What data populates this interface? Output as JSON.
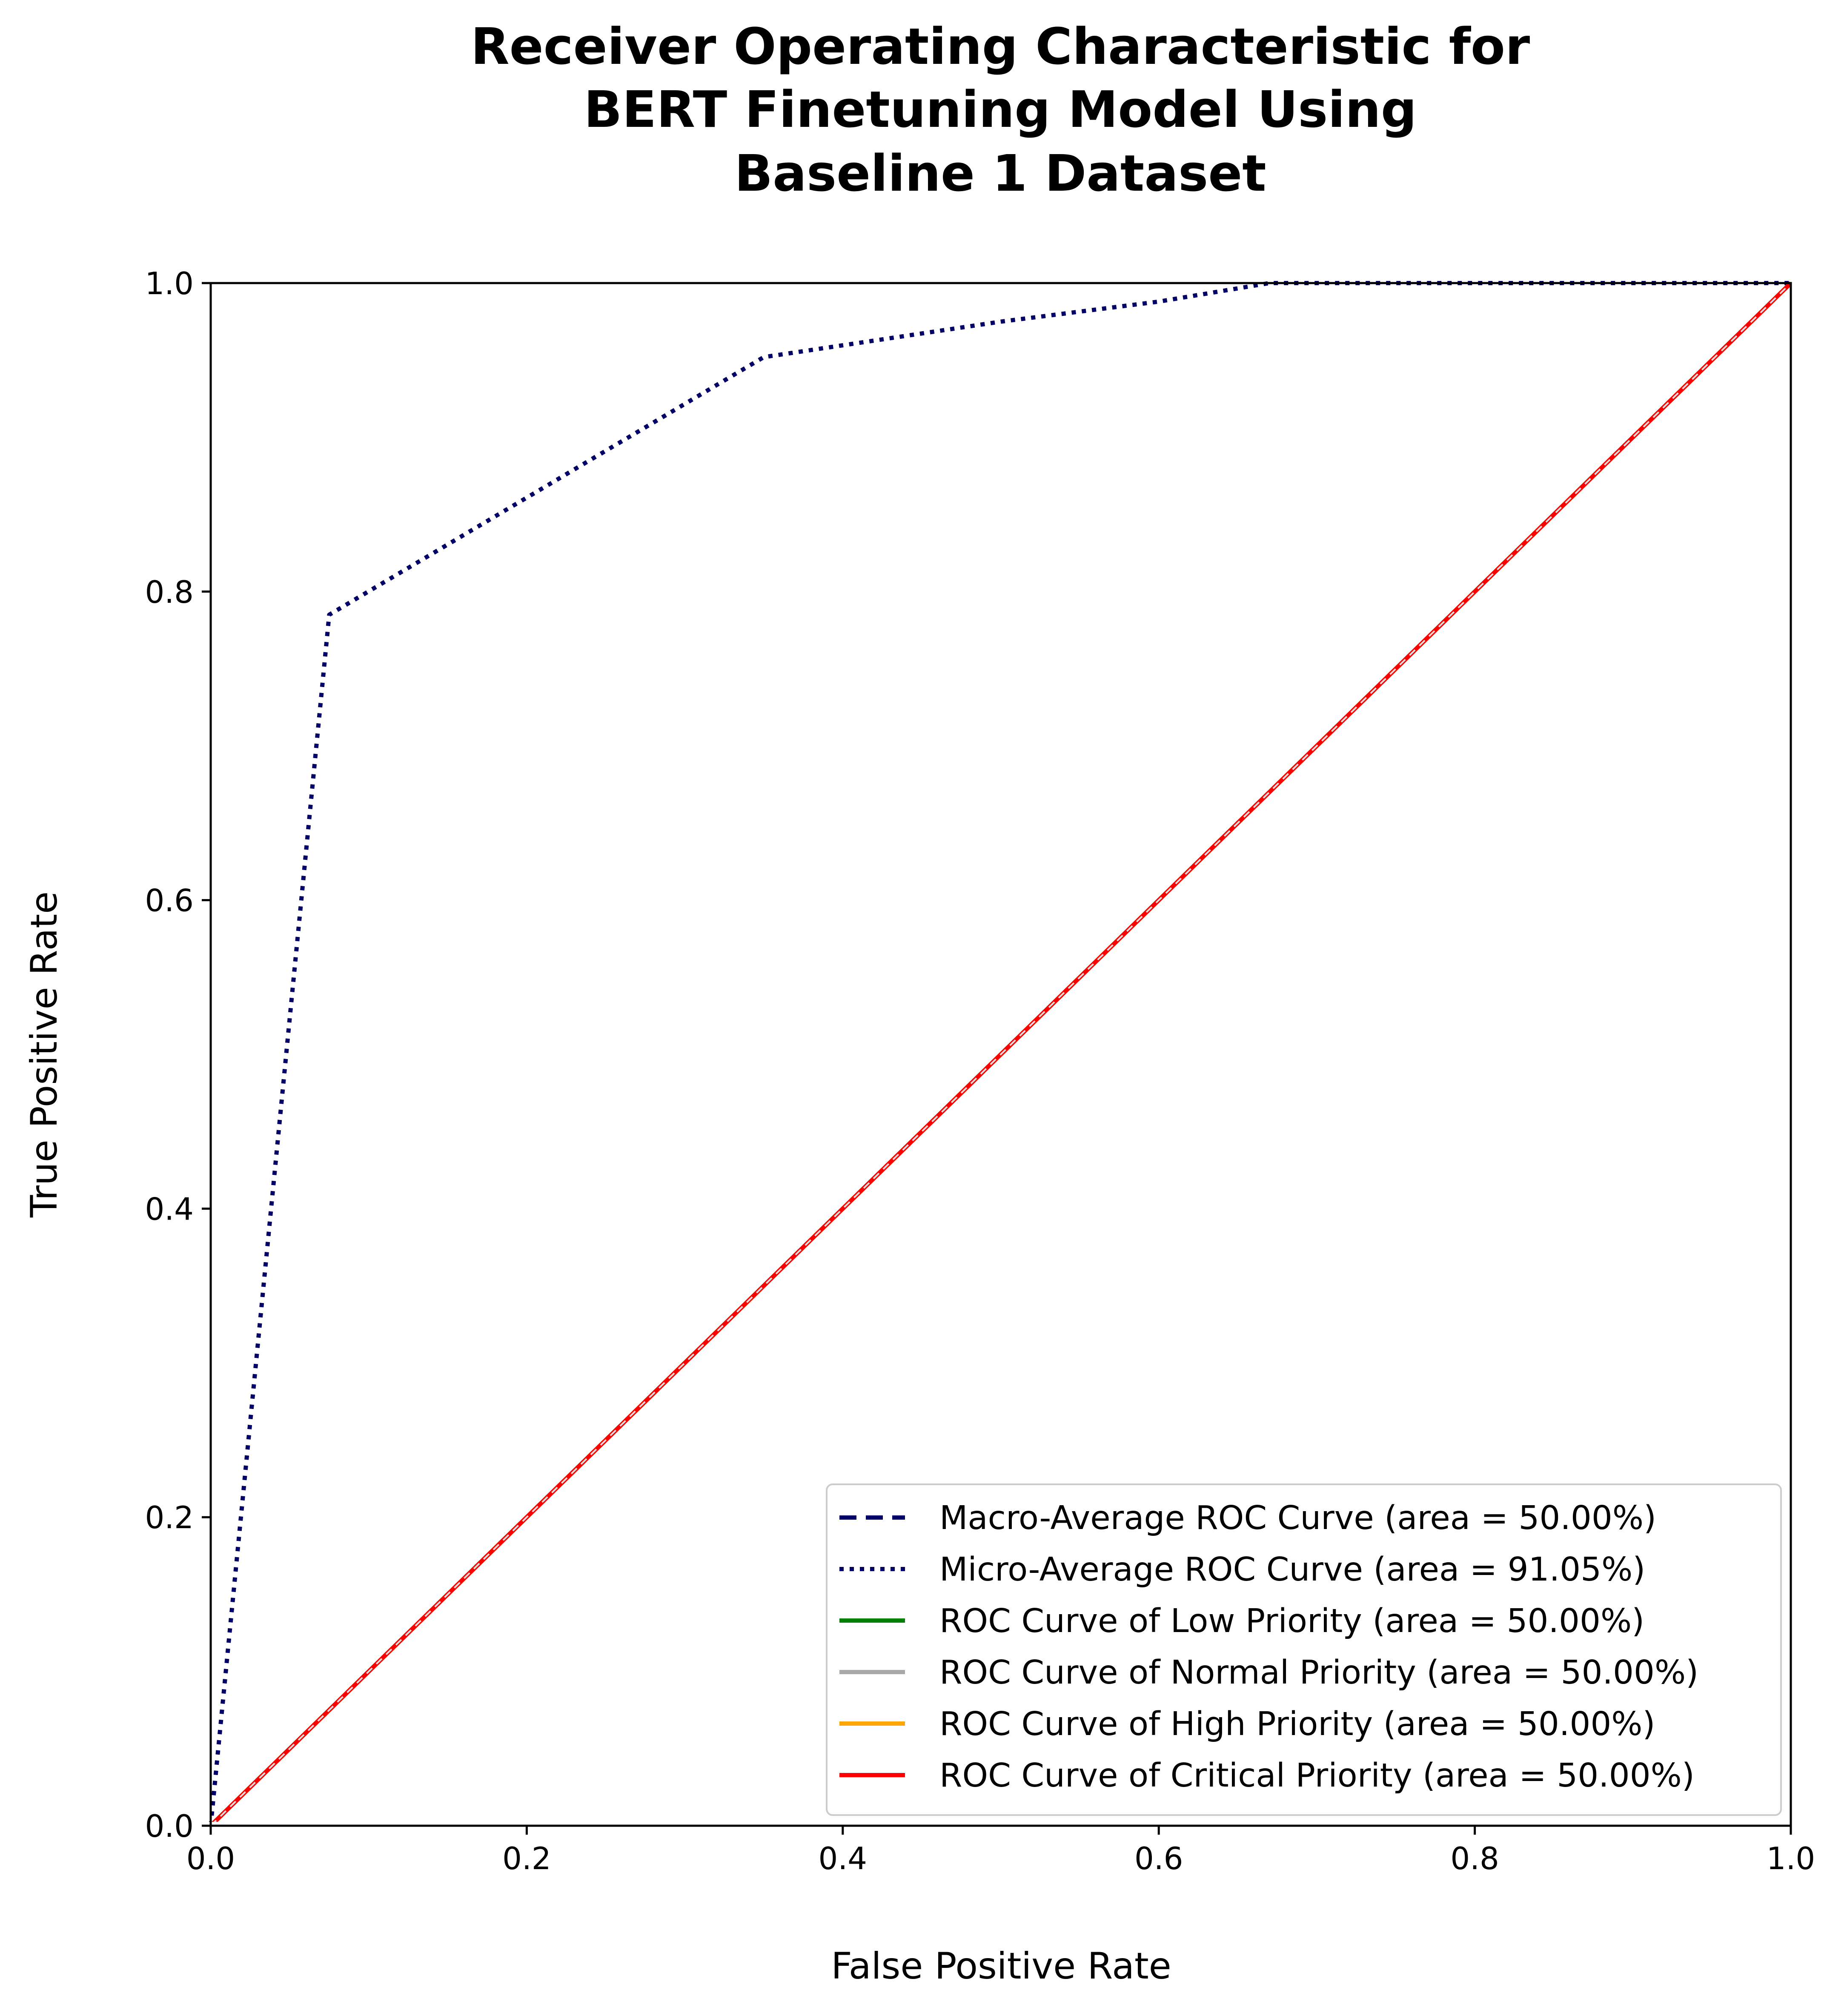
{
  "chart_data": {
    "type": "line",
    "title_lines": [
      "Receiver Operating Characteristic for",
      "BERT Finetuning Model Using",
      "Baseline 1 Dataset"
    ],
    "xlabel": "False Positive Rate",
    "ylabel": "True Positive Rate",
    "xlim": [
      0.0,
      1.0
    ],
    "ylim": [
      0.0,
      1.0
    ],
    "xticks": [
      "0.0",
      "0.2",
      "0.4",
      "0.6",
      "0.8",
      "1.0"
    ],
    "yticks": [
      "0.0",
      "0.2",
      "0.4",
      "0.6",
      "0.8",
      "1.0"
    ],
    "grid": false,
    "legend_position": "lower-right",
    "series": [
      {
        "name": "Macro-Average ROC Curve (area = 50.00%)",
        "color": "#000066",
        "style": "dashed",
        "x": [
          0.0,
          1.0
        ],
        "y": [
          0.0,
          1.0
        ]
      },
      {
        "name": "Micro-Average ROC Curve (area = 91.05%)",
        "color": "#000066",
        "style": "dotted",
        "x": [
          0.0,
          0.075,
          0.35,
          0.5,
          0.6,
          0.67,
          1.0
        ],
        "y": [
          0.0,
          0.785,
          0.952,
          0.975,
          0.988,
          1.0,
          1.0
        ]
      },
      {
        "name": "ROC Curve of Low Priority (area = 50.00%)",
        "color": "#008000",
        "style": "solid",
        "x": [
          0.0,
          1.0
        ],
        "y": [
          0.0,
          1.0
        ]
      },
      {
        "name": "ROC Curve of Normal Priority (area = 50.00%)",
        "color": "#a9a9a9",
        "style": "solid",
        "x": [
          0.0,
          1.0
        ],
        "y": [
          0.0,
          1.0
        ]
      },
      {
        "name": "ROC Curve of High Priority (area = 50.00%)",
        "color": "#ffa500",
        "style": "solid",
        "x": [
          0.0,
          1.0
        ],
        "y": [
          0.0,
          1.0
        ]
      },
      {
        "name": "ROC Curve of Critical Priority (area = 50.00%)",
        "color": "#ff0000",
        "style": "solid",
        "x": [
          0.0,
          1.0
        ],
        "y": [
          0.0,
          1.0
        ]
      }
    ],
    "reference_line": {
      "color": "#dddddd",
      "style": "dashed",
      "x": [
        0.0,
        1.0
      ],
      "y": [
        0.0,
        1.0
      ]
    }
  }
}
